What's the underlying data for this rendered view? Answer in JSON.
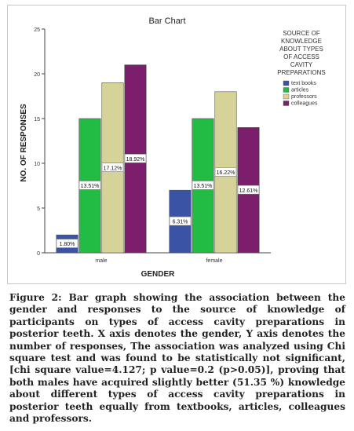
{
  "chart_data": {
    "type": "bar",
    "title": "Bar Chart",
    "xlabel": "GENDER",
    "ylabel": "NO. OF RESPONSES",
    "ylim": [
      0,
      25
    ],
    "yticks": [
      0,
      5,
      10,
      15,
      20,
      25
    ],
    "grid": false,
    "legend_position": "top-right",
    "legend_title": [
      "SOURCE OF",
      "KNOWLEDGE",
      "ABOUT TYPES",
      "OF ACCESS",
      "CAVITY",
      "PREPARATIONS"
    ],
    "categories": [
      "male",
      "female"
    ],
    "series": [
      {
        "name": "text books",
        "color": "#3b53a4",
        "values": [
          2,
          7
        ],
        "labels": [
          "1.80%",
          "6.31%"
        ]
      },
      {
        "name": "articles",
        "color": "#22bb44",
        "values": [
          15,
          15
        ],
        "labels": [
          "13.51%",
          "13.51%"
        ]
      },
      {
        "name": "professors",
        "color": "#d6d298",
        "values": [
          19,
          18
        ],
        "labels": [
          "17.12%",
          "16.22%"
        ]
      },
      {
        "name": "colleagues",
        "color": "#7b1e6b",
        "values": [
          21,
          14
        ],
        "labels": [
          "18.92%",
          "12.61%"
        ]
      }
    ]
  },
  "caption": "Figure 2: Bar graph showing the association between the gender and responses to the source of knowledge of participants on types of access cavity preparations in posterior teeth. X axis denotes the gender, Y axis denotes the number of responses, The association was analyzed using Chi square test and was found to be statistically not significant, [chi square value=4.127; p value=0.2 (p>0.05)], proving that both males have acquired slightly better (51.35 %) knowledge about different types of access cavity preparations in posterior teeth equally from textbooks, articles, colleagues and professors."
}
